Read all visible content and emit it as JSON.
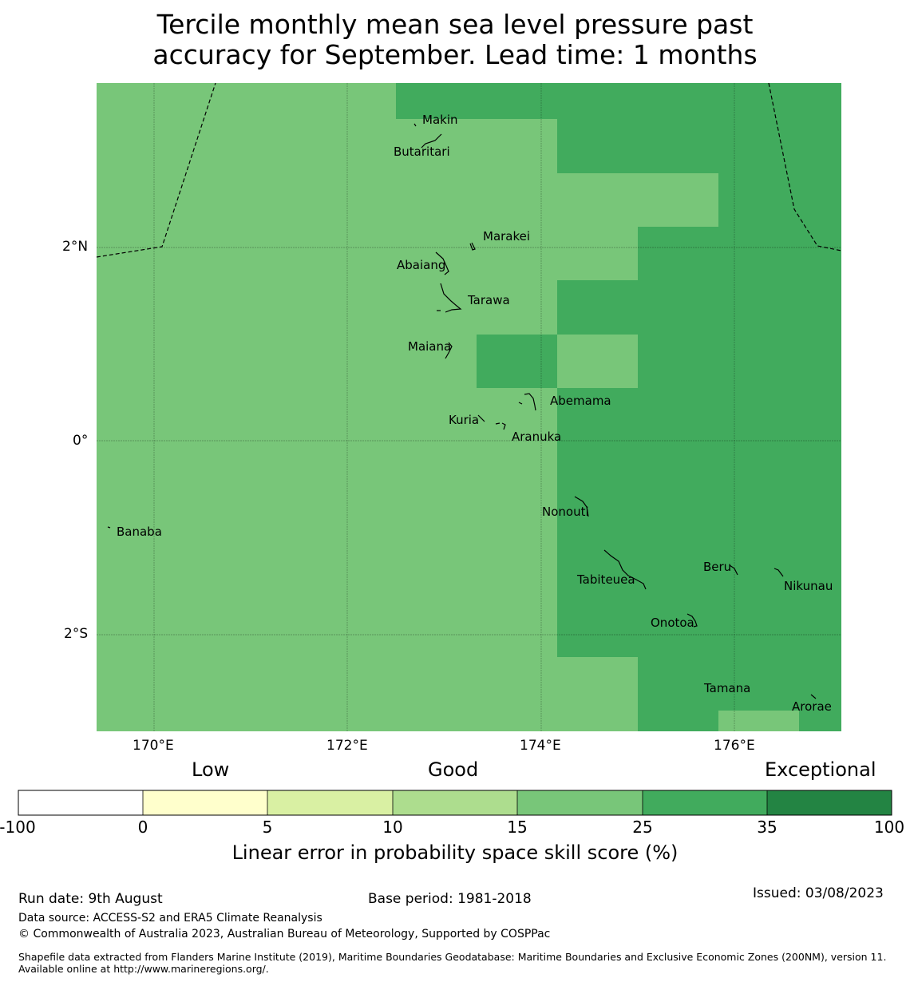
{
  "title": {
    "line1": "Tercile monthly mean sea level pressure past",
    "line2": "accuracy for September. Lead time: 1 months"
  },
  "map": {
    "x_ticks": [
      "170°E",
      "172°E",
      "174°E",
      "176°E"
    ],
    "y_ticks": [
      "2°N",
      "0°",
      "2°S"
    ],
    "colors": {
      "bin_15_25": "#78c679",
      "bin_25_35": "#41ab5d"
    },
    "places": [
      {
        "name": "Makin"
      },
      {
        "name": "Butaritari"
      },
      {
        "name": "Marakei"
      },
      {
        "name": "Abaiang"
      },
      {
        "name": "Tarawa"
      },
      {
        "name": "Maiana"
      },
      {
        "name": "Abemama"
      },
      {
        "name": "Kuria"
      },
      {
        "name": "Aranuka"
      },
      {
        "name": "Banaba"
      },
      {
        "name": "Nonouti"
      },
      {
        "name": "Beru"
      },
      {
        "name": "Tabiteuea"
      },
      {
        "name": "Nikunau"
      },
      {
        "name": "Onotoa"
      },
      {
        "name": "Tamana"
      },
      {
        "name": "Arorae"
      }
    ]
  },
  "colorbar": {
    "category_labels": {
      "low": "Low",
      "good": "Good",
      "exceptional": "Exceptional"
    },
    "ticks": [
      "-100",
      "0",
      "5",
      "10",
      "15",
      "25",
      "35",
      "100"
    ],
    "colors": [
      "#ffffff",
      "#ffffcc",
      "#d9f0a3",
      "#addd8e",
      "#78c679",
      "#41ab5d",
      "#238443"
    ],
    "title": "Linear error in probability space skill score (%)"
  },
  "footer": {
    "run_date": "Run date: 9th August",
    "base_period": "Base period: 1981-2018",
    "issued": "Issued: 03/08/2023",
    "data_source": "Data source: ACCESS-S2 and ERA5 Climate Reanalysis",
    "copyright": "© Commonwealth of Australia 2023, Australian Bureau of Meteorology, Supported by COSPPac",
    "shapefile": "Shapefile data extracted from Flanders Marine Institute (2019), Maritime Boundaries Geodatabase: Maritime Boundaries and Exclusive Economic Zones (200NM), version 11. Available online at http://www.marineregions.org/."
  }
}
